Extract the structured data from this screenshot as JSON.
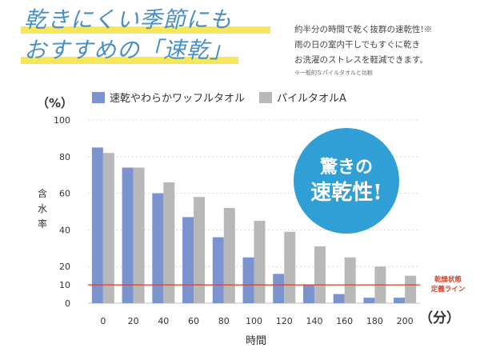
{
  "headline": {
    "line1": "乾きにくい季節にも",
    "line2": "おすすめの「速乾」"
  },
  "description": {
    "line1": "約半分の時間で乾く抜群の速乾性!※",
    "line2": "雨の日の室内干しでもすぐに乾き",
    "line3": "お洗濯のストレスを軽減できます。",
    "note": "※一般的なパイルタオルと比較"
  },
  "badge": {
    "line1": "驚きの",
    "line2": "速乾性!",
    "color": "#2f9fd6"
  },
  "dry_line": {
    "value": 10,
    "label_line1": "乾燥状態",
    "label_line2": "定義ライン",
    "color": "#d2432a"
  },
  "chart_data": {
    "type": "bar",
    "categories": [
      "0",
      "20",
      "40",
      "60",
      "80",
      "100",
      "120",
      "140",
      "160",
      "180",
      "200"
    ],
    "series": [
      {
        "name": "速乾やわらかワッフルタオル",
        "color": "#7b93cf",
        "values": [
          85,
          74,
          60,
          47,
          36,
          25,
          16,
          10,
          5,
          3,
          3
        ]
      },
      {
        "name": "パイルタオルA",
        "color": "#b8b8b8",
        "values": [
          82,
          74,
          66,
          58,
          52,
          45,
          39,
          31,
          25,
          20,
          15
        ]
      }
    ],
    "y_ticks": [
      "0",
      "10",
      "20",
      "40",
      "60",
      "80",
      "100"
    ],
    "y_tick_values": [
      0,
      10,
      20,
      40,
      60,
      80,
      100
    ],
    "ylim": [
      0,
      100
    ],
    "ylabel_unit": "（%）",
    "ylabel": "含水率",
    "xlabel": "時間",
    "x_unit": "（分）",
    "grid": true,
    "legend": "top"
  }
}
